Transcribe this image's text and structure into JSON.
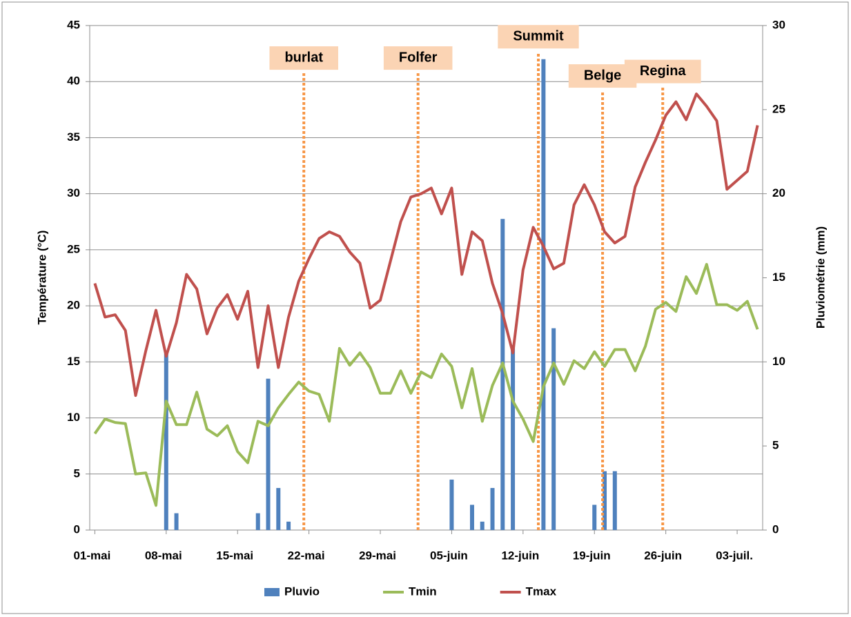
{
  "chart_data": {
    "type": "line",
    "ylabel": "Température (°C)",
    "y2label": "Pluviométrie (mm)",
    "categories": [
      "01-mai",
      null,
      null,
      null,
      null,
      null,
      null,
      "08-mai",
      null,
      null,
      null,
      null,
      null,
      null,
      "15-mai",
      null,
      null,
      null,
      null,
      null,
      null,
      "22-mai",
      null,
      null,
      null,
      null,
      null,
      null,
      "29-mai",
      null,
      null,
      null,
      null,
      null,
      null,
      "05-juin",
      null,
      null,
      null,
      null,
      null,
      null,
      "12-juin",
      null,
      null,
      null,
      null,
      null,
      null,
      "19-juin",
      null,
      null,
      null,
      null,
      null,
      null,
      "26-juin",
      null,
      null,
      null,
      null,
      null,
      null,
      "03-juil.",
      null,
      null
    ],
    "ylim": [
      0,
      45
    ],
    "yticks": [
      0,
      5,
      10,
      15,
      20,
      25,
      30,
      35,
      40,
      45
    ],
    "y2lim": [
      0,
      30
    ],
    "y2ticks": [
      0,
      5,
      10,
      15,
      20,
      25,
      30
    ],
    "grid": true,
    "legend": "bottom",
    "series": [
      {
        "name": "Pluvio",
        "type": "bar",
        "axis": "y2",
        "color": "#4f81bd",
        "values": [
          0,
          0,
          0,
          0,
          0,
          0,
          0,
          10.5,
          1,
          0,
          0,
          0,
          0,
          0,
          0,
          0,
          1,
          9,
          2.5,
          0.5,
          0,
          0,
          0,
          0,
          0,
          0,
          0,
          0,
          0,
          0,
          0,
          0,
          0,
          0,
          0,
          3,
          0,
          1.5,
          0.5,
          2.5,
          18.5,
          11,
          0,
          0,
          28,
          12,
          0,
          0,
          0,
          1.5,
          3.5,
          3.5,
          0,
          0,
          0,
          0,
          0,
          0,
          0,
          0,
          0,
          0,
          0,
          0,
          0,
          0
        ]
      },
      {
        "name": "Tmin",
        "type": "line",
        "color": "#9bbb59",
        "values": [
          8.6,
          9.9,
          9.6,
          9.5,
          5,
          5.1,
          2.2,
          11.5,
          9.4,
          9.4,
          12.3,
          9,
          8.4,
          9.3,
          7,
          6,
          9.7,
          9.3,
          10.9,
          12.1,
          13.2,
          12.4,
          12.1,
          9.7,
          16.2,
          14.7,
          15.8,
          14.5,
          12.2,
          12.2,
          14.2,
          12.2,
          14.1,
          13.6,
          15.7,
          14.6,
          10.9,
          14.4,
          9.7,
          12.9,
          14.9,
          11.5,
          9.9,
          7.9,
          12.8,
          14.9,
          13,
          15.1,
          14.4,
          15.9,
          14.6,
          16.1,
          16.1,
          14.2,
          16.4,
          19.7,
          20.3,
          19.5,
          22.6,
          21.1,
          23.7,
          20.1,
          20.1,
          19.6,
          20.4,
          17.9
        ]
      },
      {
        "name": "Tmax",
        "type": "line",
        "color": "#c0504d",
        "values": [
          22,
          19,
          19.2,
          17.8,
          12,
          16,
          19.6,
          15.5,
          18.5,
          22.8,
          21.5,
          17.5,
          19.8,
          21,
          18.8,
          21.3,
          14.5,
          20,
          14.5,
          19,
          22.2,
          24.2,
          26,
          26.6,
          26.2,
          24.8,
          23.8,
          19.8,
          20.5,
          24,
          27.5,
          29.7,
          30,
          30.5,
          28.2,
          30.5,
          22.8,
          26.6,
          25.8,
          22,
          19.3,
          15.8,
          23.2,
          27,
          25.3,
          23.3,
          23.8,
          29,
          30.8,
          29,
          26.6,
          25.6,
          26.2,
          30.6,
          32.8,
          34.8,
          37,
          38.2,
          36.6,
          38.9,
          37.8,
          36.5,
          30.4,
          31.2,
          32,
          36.1
        ]
      }
    ],
    "annotation_color": "#f79646",
    "annotations": [
      {
        "text": "burlat",
        "x": 20.5,
        "y": 42.1
      },
      {
        "text": "Folfer",
        "x": 31.7,
        "y": 42.1
      },
      {
        "text": "Summit",
        "x": 43.5,
        "y": 44
      },
      {
        "text": "Belge",
        "x": 49.8,
        "y": 40.5
      },
      {
        "text": "Regina",
        "x": 55.7,
        "y": 40.9
      }
    ]
  }
}
